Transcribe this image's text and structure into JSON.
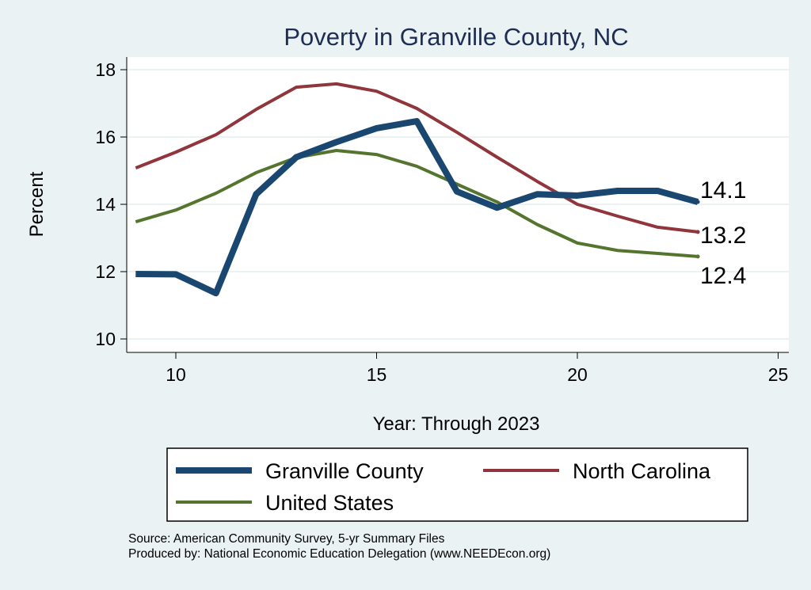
{
  "chart_data": {
    "type": "line",
    "title": "Poverty in Granville County, NC",
    "xlabel": "Year: Through 2023",
    "ylabel": "Percent",
    "xlim": [
      8.8,
      25.3
    ],
    "ylim": [
      9.6,
      18.4
    ],
    "xticks": [
      10,
      15,
      20,
      25
    ],
    "yticks": [
      10,
      12,
      14,
      16,
      18
    ],
    "grid": true,
    "legend_position": "bottom",
    "x": [
      9,
      10,
      11,
      12,
      13,
      14,
      15,
      16,
      17,
      18,
      19,
      20,
      21,
      22,
      23
    ],
    "series": [
      {
        "name": "Granville County",
        "color": "#1a476f",
        "width": 8,
        "end_label": "14.1",
        "values": [
          11.93,
          11.92,
          11.36,
          14.3,
          15.4,
          15.85,
          16.26,
          16.47,
          14.38,
          13.9,
          14.3,
          14.26,
          14.4,
          14.4,
          14.07
        ]
      },
      {
        "name": "North Carolina",
        "color": "#90353b",
        "width": 4,
        "end_label": "13.2",
        "values": [
          15.08,
          15.55,
          16.07,
          16.82,
          17.48,
          17.58,
          17.36,
          16.85,
          16.14,
          15.4,
          14.68,
          14.0,
          13.65,
          13.32,
          13.18
        ]
      },
      {
        "name": "United States",
        "color": "#55752f",
        "width": 4,
        "end_label": "12.4",
        "values": [
          13.48,
          13.83,
          14.33,
          14.94,
          15.39,
          15.6,
          15.48,
          15.13,
          14.6,
          14.07,
          13.4,
          12.85,
          12.63,
          12.54,
          12.45
        ]
      }
    ]
  },
  "notes": {
    "source": "Source: American Community Survey, 5-yr Summary Files",
    "produced": "Produced by: National Economic Education Delegation (www.NEEDEcon.org)"
  }
}
